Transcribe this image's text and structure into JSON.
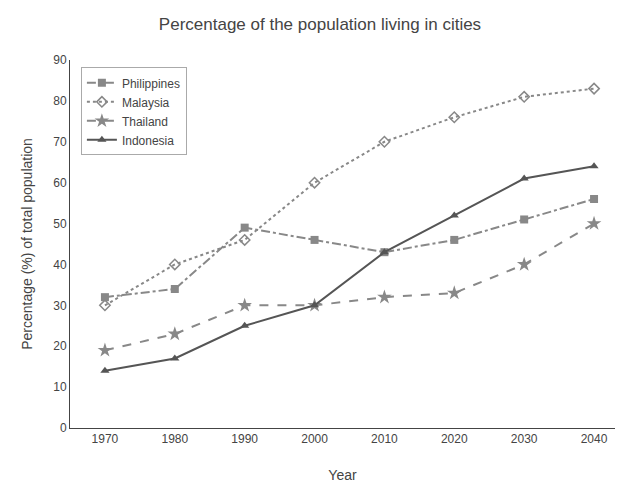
{
  "chart_data": {
    "type": "line",
    "title": "Percentage of the population living in cities",
    "x_label": "Year",
    "y_label": "Percentage (%) of total population",
    "x": [
      1970,
      1980,
      1990,
      2000,
      2010,
      2020,
      2030,
      2040
    ],
    "series": [
      {
        "name": "Philippines",
        "color": "#888888",
        "line_style": "dashdot",
        "marker": "square",
        "values": [
          32,
          34,
          49,
          46,
          43,
          46,
          51,
          56
        ]
      },
      {
        "name": "Malaysia",
        "color": "#888888",
        "line_style": "dotted",
        "marker": "diamond-open",
        "values": [
          30,
          40,
          46,
          60,
          70,
          76,
          81,
          83
        ]
      },
      {
        "name": "Thailand",
        "color": "#888888",
        "line_style": "dashed",
        "marker": "star",
        "values": [
          19,
          23,
          30,
          30,
          32,
          33,
          40,
          50
        ]
      },
      {
        "name": "Indonesia",
        "color": "#555555",
        "line_style": "solid",
        "marker": "triangle-up",
        "values": [
          14,
          17,
          25,
          30,
          43,
          52,
          61,
          64
        ]
      }
    ],
    "xlim": [
      1965,
      2043
    ],
    "xticks": [
      1970,
      1980,
      1990,
      2000,
      2010,
      2020,
      2030,
      2040
    ],
    "ylim": [
      0,
      90
    ],
    "yticks": [
      0,
      10,
      20,
      30,
      40,
      50,
      60,
      70,
      80,
      90
    ],
    "grid": false,
    "legend": "upper left"
  }
}
